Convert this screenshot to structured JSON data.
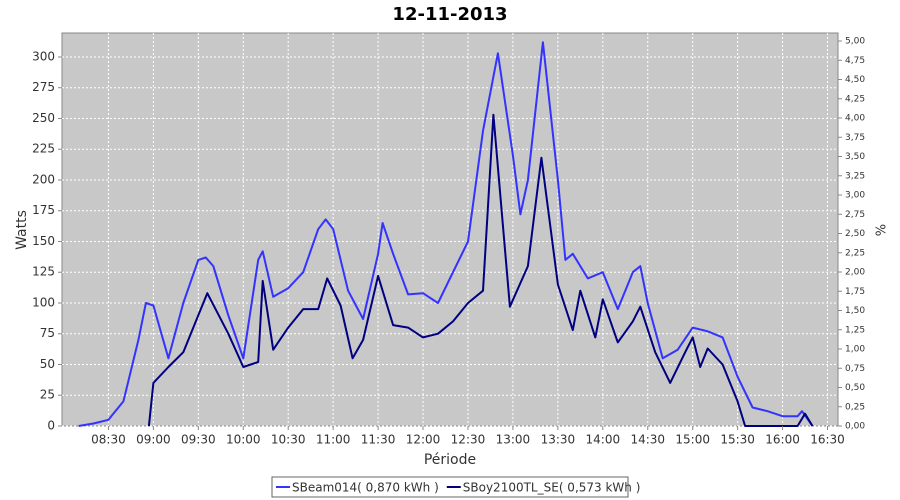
{
  "chart_data": {
    "type": "line",
    "title": "12-11-2013",
    "x_label": "Période",
    "y_label": "Watts",
    "y2_label": "%",
    "xlim": [
      "07:59",
      "16:37"
    ],
    "xticks": [
      "08:30",
      "09:00",
      "09:30",
      "10:00",
      "10:30",
      "11:00",
      "11:30",
      "12:00",
      "12:30",
      "13:00",
      "13:30",
      "14:00",
      "14:30",
      "15:00",
      "15:30",
      "16:00",
      "16:30"
    ],
    "ylim": [
      0,
      319.5
    ],
    "yticks": [
      0,
      25,
      50,
      75,
      100,
      125,
      150,
      175,
      200,
      225,
      250,
      275,
      300
    ],
    "y2lim": [
      0,
      5.104
    ],
    "y2ticks": [
      {
        "value": 0,
        "label": "0,00"
      },
      {
        "value": 0.25,
        "label": "0,25"
      },
      {
        "value": 0.5,
        "label": "0,50"
      },
      {
        "value": 0.75,
        "label": "0,75"
      },
      {
        "value": 1,
        "label": "1,00"
      },
      {
        "value": 1.25,
        "label": "1,25"
      },
      {
        "value": 1.5,
        "label": "1,50"
      },
      {
        "value": 1.75,
        "label": "1,75"
      },
      {
        "value": 2,
        "label": "2,00"
      },
      {
        "value": 2.25,
        "label": "2,25"
      },
      {
        "value": 2.5,
        "label": "2,50"
      },
      {
        "value": 2.75,
        "label": "2,75"
      },
      {
        "value": 3,
        "label": "3,00"
      },
      {
        "value": 3.25,
        "label": "3,25"
      },
      {
        "value": 3.5,
        "label": "3,50"
      },
      {
        "value": 3.75,
        "label": "3,75"
      },
      {
        "value": 4,
        "label": "4,00"
      },
      {
        "value": 4.25,
        "label": "4,25"
      },
      {
        "value": 4.5,
        "label": "4,50"
      },
      {
        "value": 4.75,
        "label": "4,75"
      },
      {
        "value": 5,
        "label": "5,00"
      }
    ],
    "grid": true,
    "legend": "bottom",
    "series": [
      {
        "name": "SBeam014( 0,870 kWh )",
        "color": "#3333ff",
        "x": [
          "08:10",
          "08:20",
          "08:30",
          "08:40",
          "08:50",
          "08:55",
          "09:00",
          "09:10",
          "09:20",
          "09:30",
          "09:35",
          "09:40",
          "09:50",
          "10:00",
          "10:10",
          "10:13",
          "10:20",
          "10:30",
          "10:40",
          "10:50",
          "10:55",
          "11:00",
          "11:10",
          "11:20",
          "11:30",
          "11:33",
          "11:40",
          "11:50",
          "12:00",
          "12:10",
          "12:20",
          "12:30",
          "12:40",
          "12:50",
          "13:00",
          "13:05",
          "13:10",
          "13:20",
          "13:30",
          "13:35",
          "13:40",
          "13:50",
          "14:00",
          "14:10",
          "14:20",
          "14:25",
          "14:30",
          "14:40",
          "14:50",
          "15:00",
          "15:10",
          "15:20",
          "15:30",
          "15:40",
          "15:50",
          "16:00",
          "16:10",
          "16:13",
          "16:20"
        ],
        "values": [
          0,
          2,
          5,
          20,
          70,
          100,
          98,
          55,
          100,
          135,
          137,
          130,
          90,
          55,
          135,
          142,
          105,
          112,
          125,
          160,
          168,
          160,
          110,
          87,
          140,
          165,
          140,
          107,
          108,
          100,
          125,
          150,
          240,
          303,
          220,
          172,
          200,
          312,
          200,
          135,
          140,
          120,
          125,
          95,
          125,
          130,
          100,
          55,
          62,
          80,
          77,
          72,
          40,
          15,
          12,
          8,
          8,
          12,
          0
        ]
      },
      {
        "name": "SBoy2100TL_SE( 0,573 kWh )",
        "color": "#000080",
        "x": [
          "08:57",
          "09:00",
          "09:10",
          "09:20",
          "09:30",
          "09:36",
          "09:50",
          "10:00",
          "10:10",
          "10:13",
          "10:20",
          "10:30",
          "10:40",
          "10:50",
          "10:56",
          "11:05",
          "11:13",
          "11:20",
          "11:30",
          "11:40",
          "11:50",
          "12:00",
          "12:10",
          "12:20",
          "12:30",
          "12:40",
          "12:47",
          "12:58",
          "13:10",
          "13:19",
          "13:30",
          "13:40",
          "13:45",
          "13:55",
          "14:00",
          "14:10",
          "14:20",
          "14:25",
          "14:35",
          "14:45",
          "14:55",
          "15:00",
          "15:05",
          "15:10",
          "15:20",
          "15:30",
          "15:35",
          "16:10",
          "16:15",
          "16:20"
        ],
        "values": [
          0,
          35,
          48,
          60,
          90,
          108,
          75,
          48,
          52,
          118,
          62,
          80,
          95,
          95,
          120,
          98,
          55,
          70,
          122,
          82,
          80,
          72,
          75,
          85,
          100,
          110,
          253,
          97,
          130,
          218,
          115,
          78,
          110,
          72,
          103,
          68,
          85,
          97,
          60,
          35,
          60,
          72,
          48,
          63,
          50,
          20,
          0,
          0,
          10,
          0
        ]
      }
    ]
  }
}
